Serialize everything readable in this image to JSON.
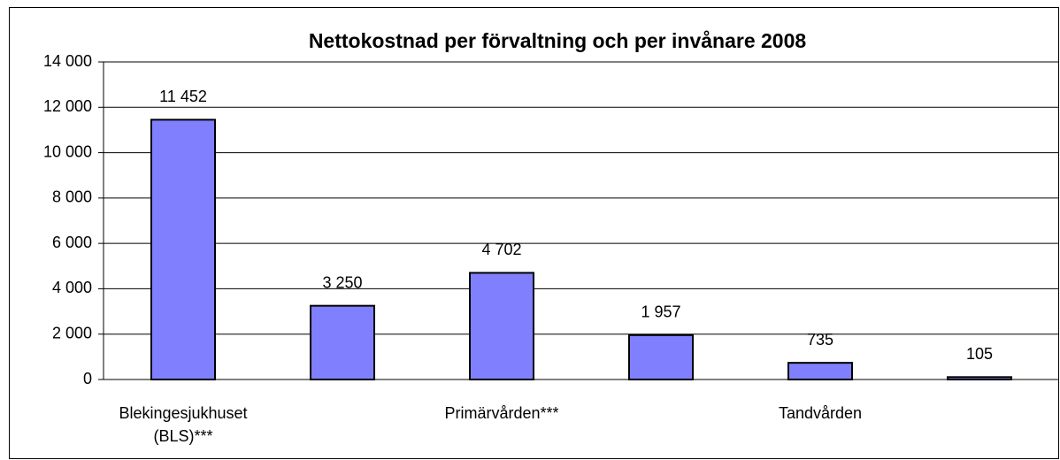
{
  "chart_data": {
    "type": "bar",
    "title": "Nettokostnad per förvaltning och per invånare 2008",
    "categories": [
      "Blekingesjukhuset (BLS)***",
      null,
      "Primärvården***",
      null,
      "Tandvården",
      null
    ],
    "values": [
      11452,
      3250,
      4702,
      1957,
      735,
      105
    ],
    "value_labels": [
      "11 452",
      "3 250",
      "4 702",
      "1 957",
      "735",
      "105"
    ],
    "color": "#8080ff",
    "ylim": [
      0,
      14000
    ],
    "yticks": [
      0,
      {
        "value": 2000,
        "label": "2 000"
      },
      {
        "value": 4000,
        "label": "4 000"
      },
      {
        "value": 6000,
        "label": "6 000"
      },
      {
        "value": 8000,
        "label": "8 000"
      },
      {
        "value": 10000,
        "label": "10 000"
      },
      {
        "value": 12000,
        "label": "12 000"
      },
      {
        "value": 14000,
        "label": "14 000"
      }
    ],
    "grid": true
  }
}
